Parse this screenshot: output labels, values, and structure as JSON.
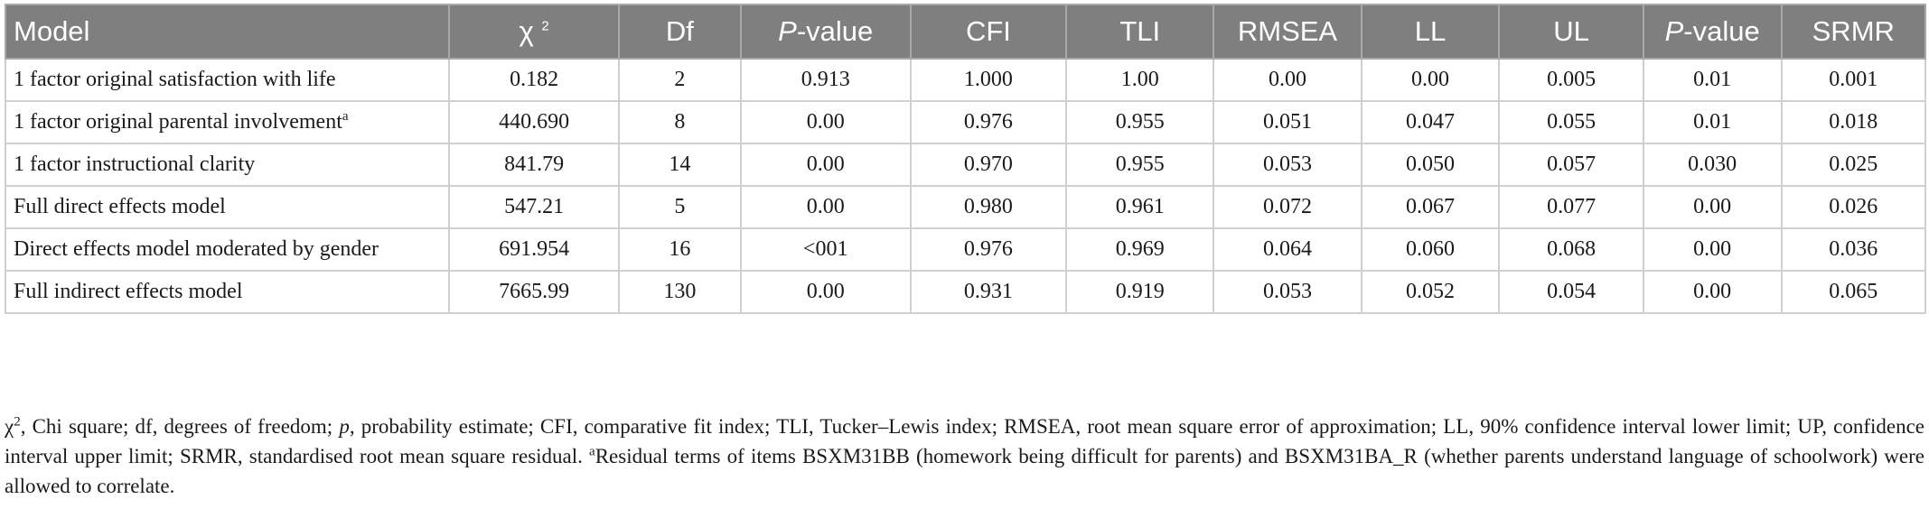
{
  "table": {
    "headers": {
      "model": "Model",
      "chi_symbol": "χ",
      "chi_sup": "2",
      "df": "Df",
      "pvalue_p": "P",
      "pvalue_rest": "-value",
      "cfi": "CFI",
      "tli": "TLI",
      "rmsea": "RMSEA",
      "ll": "LL",
      "ul": "UL",
      "pvalue2_p": "P",
      "pvalue2_rest": "-value",
      "srmr": "SRMR"
    },
    "rows": [
      {
        "model": "1 factor original satisfaction with life",
        "model_sup": "",
        "chi": "0.182",
        "df": "2",
        "p": "0.913",
        "cfi": "1.000",
        "tli": "1.00",
        "rmsea": "0.00",
        "ll": "0.00",
        "ul": "0.005",
        "p2": "0.01",
        "srmr": "0.001"
      },
      {
        "model": "1 factor original parental involvement",
        "model_sup": "a",
        "chi": "440.690",
        "df": "8",
        "p": "0.00",
        "cfi": "0.976",
        "tli": "0.955",
        "rmsea": "0.051",
        "ll": "0.047",
        "ul": "0.055",
        "p2": "0.01",
        "srmr": "0.018"
      },
      {
        "model": "1 factor instructional clarity",
        "model_sup": "",
        "chi": "841.79",
        "df": "14",
        "p": "0.00",
        "cfi": "0.970",
        "tli": "0.955",
        "rmsea": "0.053",
        "ll": "0.050",
        "ul": "0.057",
        "p2": "0.030",
        "srmr": "0.025"
      },
      {
        "model": "Full direct effects model",
        "model_sup": "",
        "chi": "547.21",
        "df": "5",
        "p": "0.00",
        "cfi": "0.980",
        "tli": "0.961",
        "rmsea": "0.072",
        "ll": "0.067",
        "ul": "0.077",
        "p2": "0.00",
        "srmr": "0.026"
      },
      {
        "model": "Direct effects model moderated by gender",
        "model_sup": "",
        "chi": "691.954",
        "df": "16",
        "p": "<001",
        "cfi": "0.976",
        "tli": "0.969",
        "rmsea": "0.064",
        "ll": "0.060",
        "ul": "0.068",
        "p2": "0.00",
        "srmr": "0.036"
      },
      {
        "model": "Full indirect effects model",
        "model_sup": "",
        "chi": "7665.99",
        "df": "130",
        "p": "0.00",
        "cfi": "0.931",
        "tli": "0.919",
        "rmsea": "0.053",
        "ll": "0.052",
        "ul": "0.054",
        "p2": "0.00",
        "srmr": "0.065"
      }
    ]
  },
  "footnote": {
    "chi_symbol": "χ",
    "chi_sup": "2",
    "part1": ", Chi square; df, degrees of freedom; ",
    "p_italic": "p",
    "part2": ", probability estimate; CFI, comparative fit index; TLI, Tucker–Lewis index; RMSEA, root mean square error of approximation; LL, 90% confidence interval lower limit; UP, confidence interval upper limit; SRMR, standardised root mean square residual. ",
    "a_sup": "a",
    "part3": "Residual terms of items BSXM31BB (homework being difficult for parents) and BSXM31BA_R (whether parents understand language of schoolwork) were allowed to correlate."
  }
}
